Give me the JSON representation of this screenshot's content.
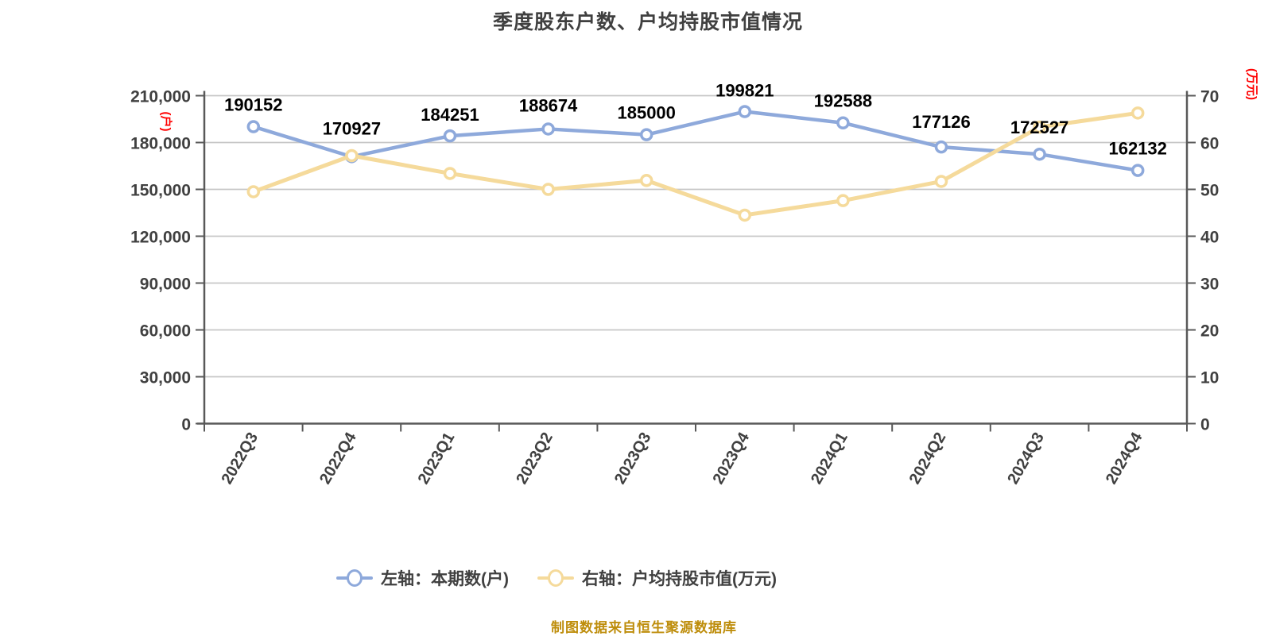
{
  "title": "季度股东户数、户均持股市值情况",
  "footer": "制图数据来自恒生聚源数据库",
  "colors": {
    "title_text": "#404040",
    "axis_text": "#404040",
    "axis_line": "#595959",
    "gridline": "#C6C6C6",
    "unit_label_red": "#FF0000",
    "data_label": "#000000",
    "footer_text": "#BE8D0B",
    "series_blue": "#8EA9DB",
    "series_yellow": "#F5DA9B",
    "marker_fill": "#FFFFFF"
  },
  "chart_data": {
    "type": "line",
    "title": "季度股东户数、户均持股市值情况",
    "categories": [
      "2022Q3",
      "2022Q4",
      "2023Q1",
      "2023Q2",
      "2023Q3",
      "2023Q4",
      "2024Q1",
      "2024Q2",
      "2024Q3",
      "2024Q4"
    ],
    "series": [
      {
        "name": "左轴：本期数(户)",
        "axis": "left",
        "color": "#8EA9DB",
        "values": [
          190152,
          170927,
          184251,
          188674,
          185000,
          199821,
          192588,
          177126,
          172527,
          162132
        ],
        "data_labels": [
          "190152",
          "170927",
          "184251",
          "188674",
          "185000",
          "199821",
          "192588",
          "177126",
          "172527",
          "162132"
        ]
      },
      {
        "name": "右轴：户均持股市值(万元)",
        "axis": "right",
        "color": "#F5DA9B",
        "values": [
          49.5,
          57.2,
          53.4,
          50.0,
          51.9,
          44.5,
          47.6,
          51.7,
          63.3,
          66.3
        ],
        "data_labels": []
      }
    ],
    "left_axis": {
      "unit_label": "(户)",
      "min": 0,
      "max": 210000,
      "step": 30000,
      "tick_labels": [
        "0",
        "30,000",
        "60,000",
        "90,000",
        "120,000",
        "150,000",
        "180,000",
        "210,000"
      ]
    },
    "right_axis": {
      "unit_label": "(万元)",
      "min": 0,
      "max": 70,
      "step": 10,
      "tick_labels": [
        "0",
        "10",
        "20",
        "30",
        "40",
        "50",
        "60",
        "70"
      ]
    },
    "grid": true,
    "legend_position": "bottom"
  }
}
